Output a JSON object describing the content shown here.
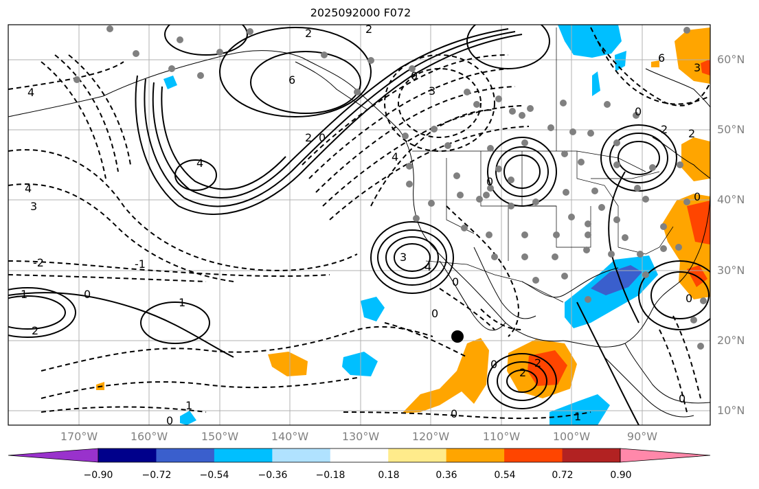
{
  "title": "2025092000 F072",
  "latitude_labels": [
    "60°N",
    "50°N",
    "40°N",
    "30°N",
    "20°N",
    "10°N"
  ],
  "longitude_labels": [
    "170°W",
    "160°W",
    "150°W",
    "140°W",
    "130°W",
    "120°W",
    "110°W",
    "100°W",
    "90°W"
  ],
  "colorbar": {
    "tick_labels": [
      "−0.90",
      "−0.72",
      "−0.54",
      "−0.36",
      "−0.18",
      "0.18",
      "0.36",
      "0.54",
      "0.72",
      "0.90"
    ],
    "colors": [
      "#9932cc",
      "#00008b",
      "#3a5fcd",
      "#00bfff",
      "#b0e2ff",
      "#ffffff",
      "#ffeb8b",
      "#ffa500",
      "#ff4500",
      "#b22222",
      "#ff88aa"
    ]
  },
  "contour_labels": [
    "-2",
    "-1",
    "0",
    "1",
    "2",
    "3",
    "4",
    "6"
  ],
  "marker": "black-dot"
}
